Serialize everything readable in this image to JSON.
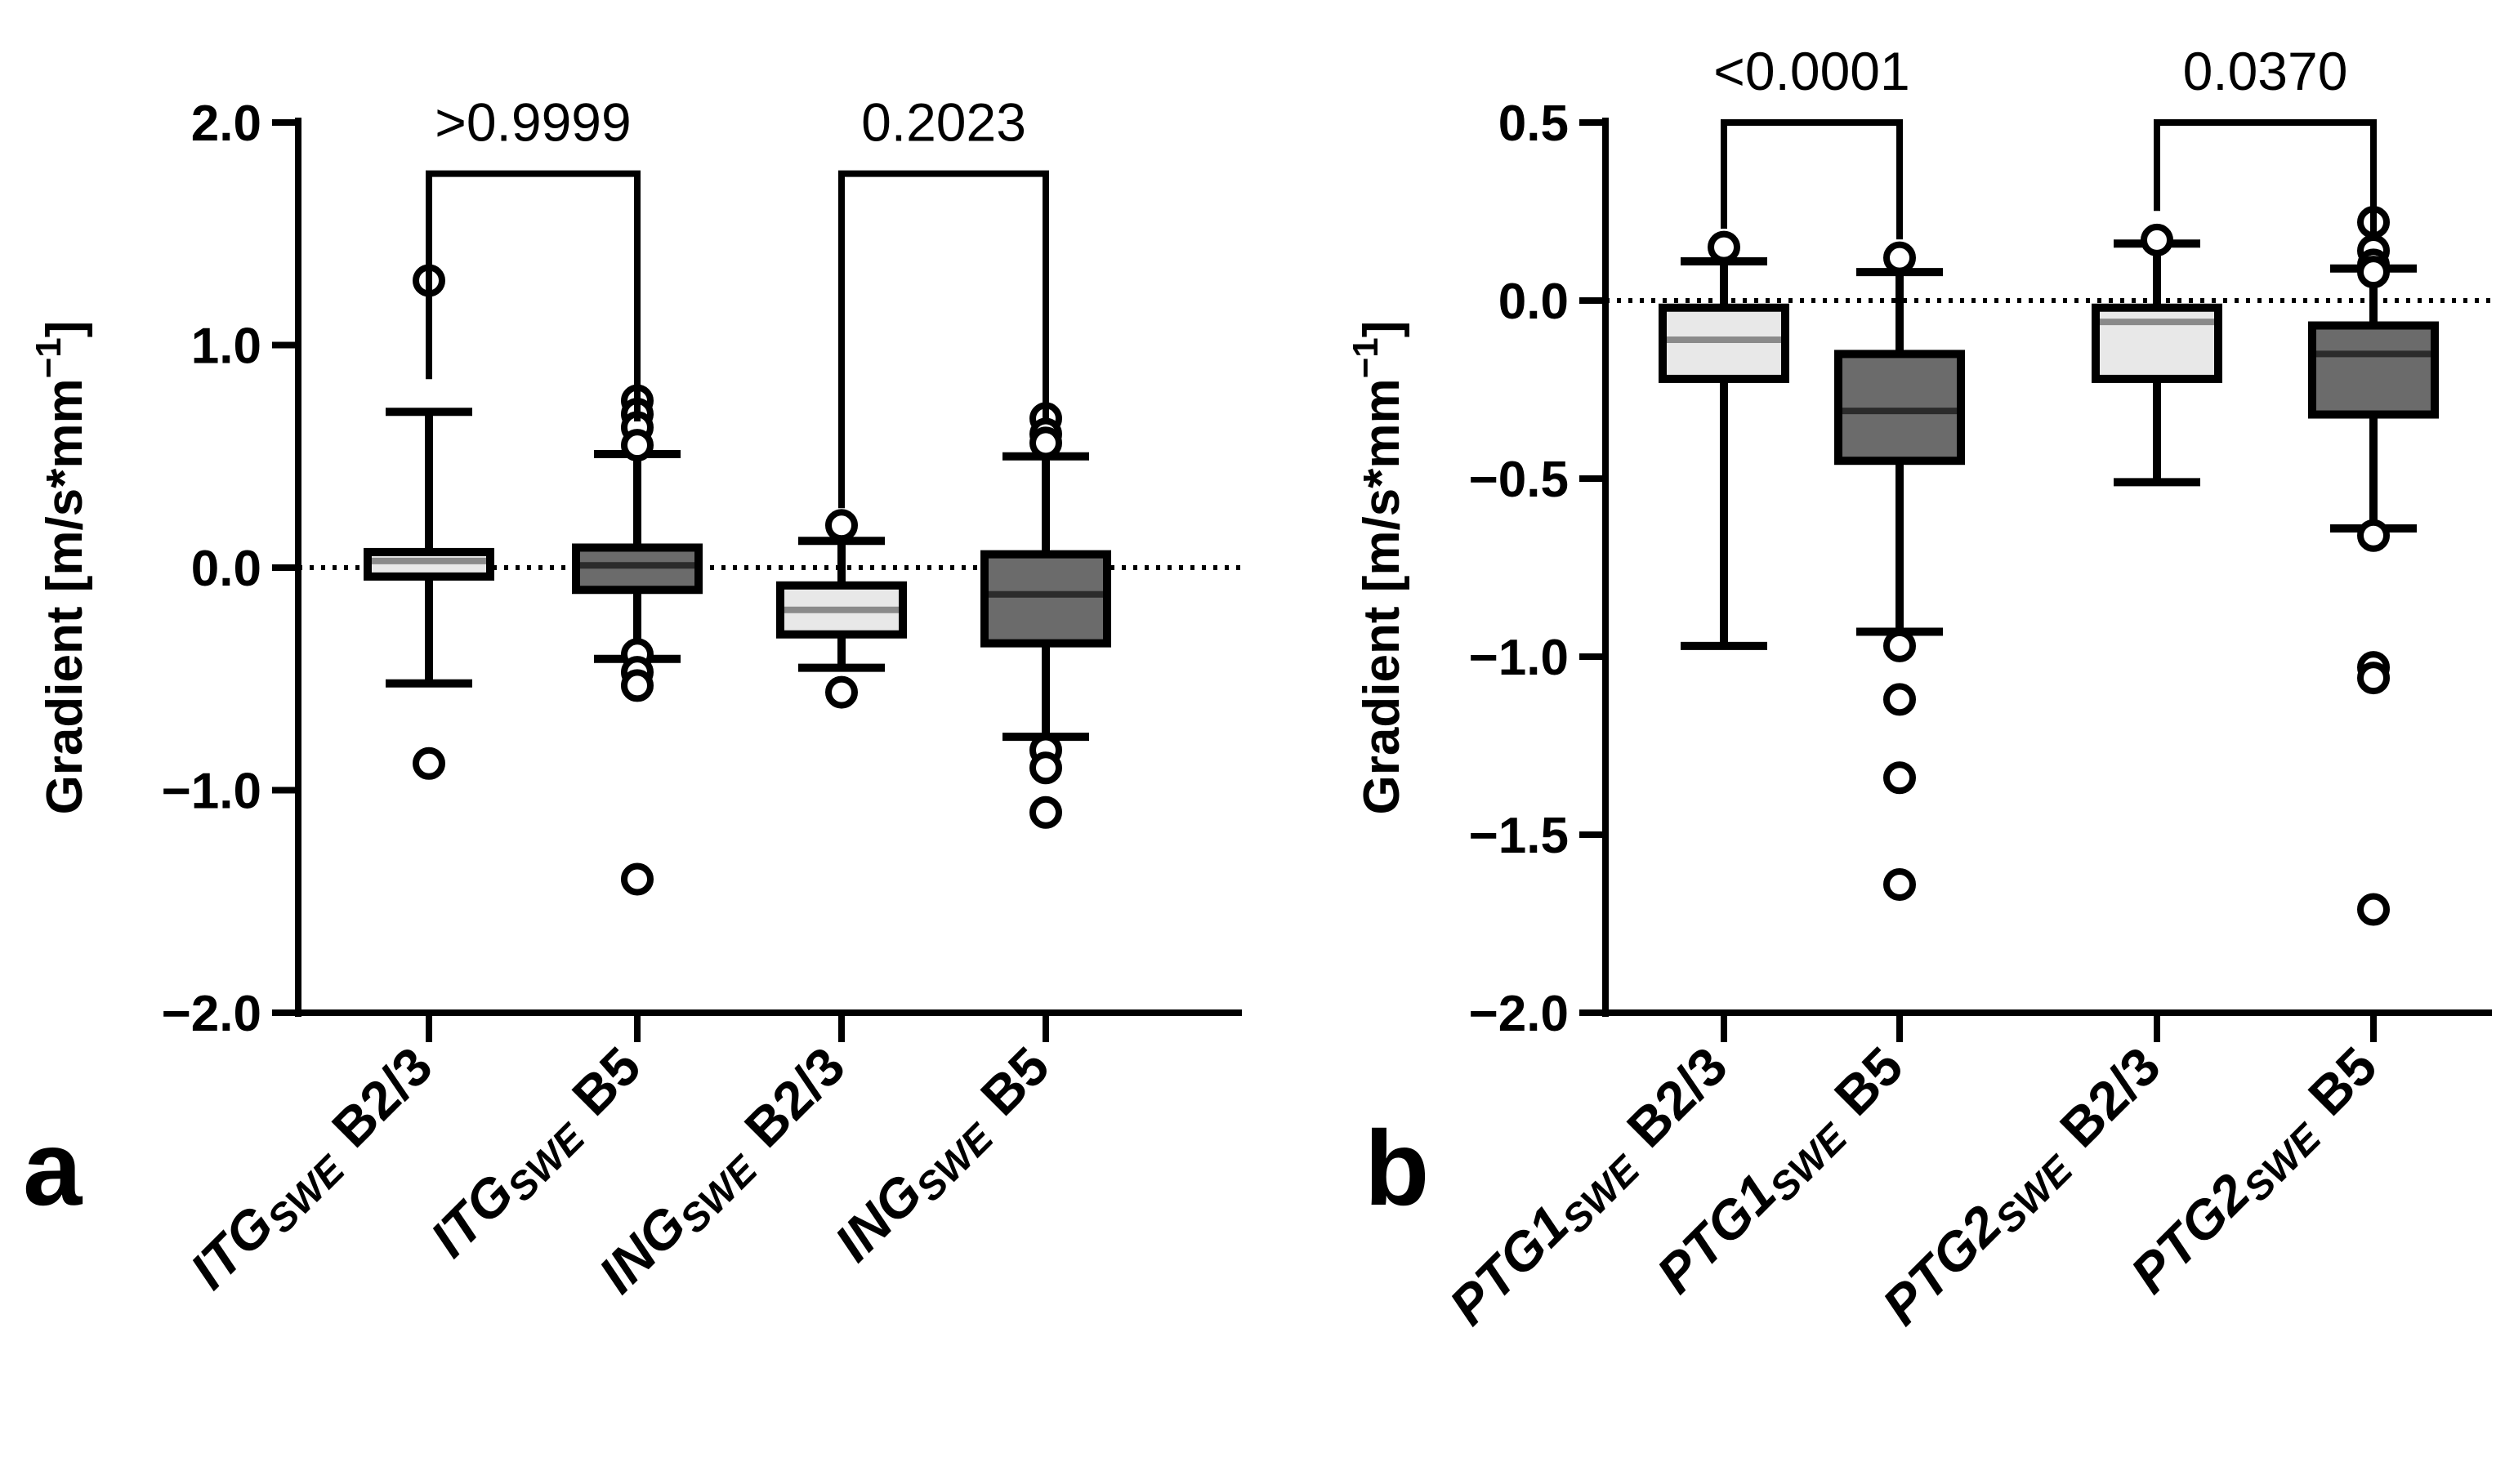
{
  "chart_data": [
    {
      "type": "box",
      "panel_label": "a",
      "ylabel": "Gradient [m/s*mm−1]",
      "ylabel_parts": {
        "main": "Gradient [m/s*mm",
        "sup": "−1",
        "close": "]"
      },
      "ylim": [
        -2.0,
        2.0
      ],
      "yticks": [
        2.0,
        1.0,
        0.0,
        -1.0,
        -2.0
      ],
      "ytick_labels": [
        "2.0",
        "1.0",
        "0.0",
        "−1.0",
        "−2.0"
      ],
      "reference_line": 0.0,
      "categories": [
        {
          "main": "ITG",
          "sub": "SWE",
          "tail": "B2/3",
          "fill": "#e8e8e8",
          "whisker_low": -0.52,
          "q1": -0.04,
          "median": 0.03,
          "q3": 0.07,
          "whisker_high": 0.7,
          "outliers": [
            1.29,
            -0.88
          ]
        },
        {
          "main": "ITG",
          "sub": "SWE",
          "tail": "B5",
          "fill": "#6b6b6b",
          "whisker_low": -0.41,
          "q1": -0.1,
          "median": 0.01,
          "q3": 0.09,
          "whisker_high": 0.51,
          "outliers": [
            0.75,
            0.69,
            0.63,
            0.55,
            -0.39,
            -0.47,
            -0.53,
            -1.4
          ]
        },
        {
          "main": "ING",
          "sub": "SWE",
          "tail": "B2/3",
          "fill": "#e8e8e8",
          "whisker_low": -0.45,
          "q1": -0.3,
          "median": -0.19,
          "q3": -0.08,
          "whisker_high": 0.12,
          "outliers": [
            0.19,
            -0.56
          ]
        },
        {
          "main": "ING",
          "sub": "SWE",
          "tail": "B5",
          "fill": "#6b6b6b",
          "whisker_low": -0.76,
          "q1": -0.34,
          "median": -0.12,
          "q3": 0.06,
          "whisker_high": 0.5,
          "outliers": [
            0.67,
            0.6,
            0.56,
            -0.82,
            -0.9,
            -1.1
          ]
        }
      ],
      "comparisons": [
        {
          "from": 0,
          "to": 1,
          "label": ">0.9999",
          "bracket_y": 1.77
        },
        {
          "from": 2,
          "to": 3,
          "label": "0.2023",
          "bracket_y": 1.77
        }
      ]
    },
    {
      "type": "box",
      "panel_label": "b",
      "ylabel": "Gradient [m/s*mm−1]",
      "ylabel_parts": {
        "main": "Gradient [m/s*mm",
        "sup": "−1",
        "close": "]"
      },
      "ylim": [
        -2.0,
        0.5
      ],
      "yticks": [
        0.5,
        0.0,
        -0.5,
        -1.0,
        -1.5,
        -2.0
      ],
      "ytick_labels": [
        "0.5",
        "0.0",
        "−0.5",
        "−1.0",
        "−1.5",
        "−2.0"
      ],
      "reference_line": 0.0,
      "categories": [
        {
          "main": "PTG1",
          "sub": "SWE",
          "tail": "B2/3",
          "fill": "#e8e8e8",
          "whisker_low": -0.97,
          "q1": -0.22,
          "median": -0.11,
          "q3": -0.02,
          "whisker_high": 0.11,
          "outliers": [
            0.15
          ]
        },
        {
          "main": "PTG1",
          "sub": "SWE",
          "tail": "B5",
          "fill": "#6b6b6b",
          "whisker_low": -0.93,
          "q1": -0.45,
          "median": -0.31,
          "q3": -0.15,
          "whisker_high": 0.08,
          "outliers": [
            0.12,
            -0.97,
            -1.12,
            -1.34,
            -1.64
          ]
        },
        {
          "main": "PTG2",
          "sub": "SWE",
          "tail": "B2/3",
          "fill": "#e8e8e8",
          "whisker_low": -0.51,
          "q1": -0.22,
          "median": -0.06,
          "q3": -0.02,
          "whisker_high": 0.16,
          "outliers": [
            0.17
          ]
        },
        {
          "main": "PTG2",
          "sub": "SWE",
          "tail": "B5",
          "fill": "#6b6b6b",
          "whisker_low": -0.64,
          "q1": -0.32,
          "median": -0.15,
          "q3": -0.07,
          "whisker_high": 0.09,
          "outliers": [
            0.22,
            0.14,
            0.1,
            0.08,
            -0.66,
            -1.03,
            -1.06,
            -1.71
          ]
        }
      ],
      "comparisons": [
        {
          "from": 0,
          "to": 1,
          "label": "<0.0001",
          "bracket_y": 0.5
        },
        {
          "from": 2,
          "to": 3,
          "label": "0.0370",
          "bracket_y": 0.5
        }
      ]
    }
  ]
}
